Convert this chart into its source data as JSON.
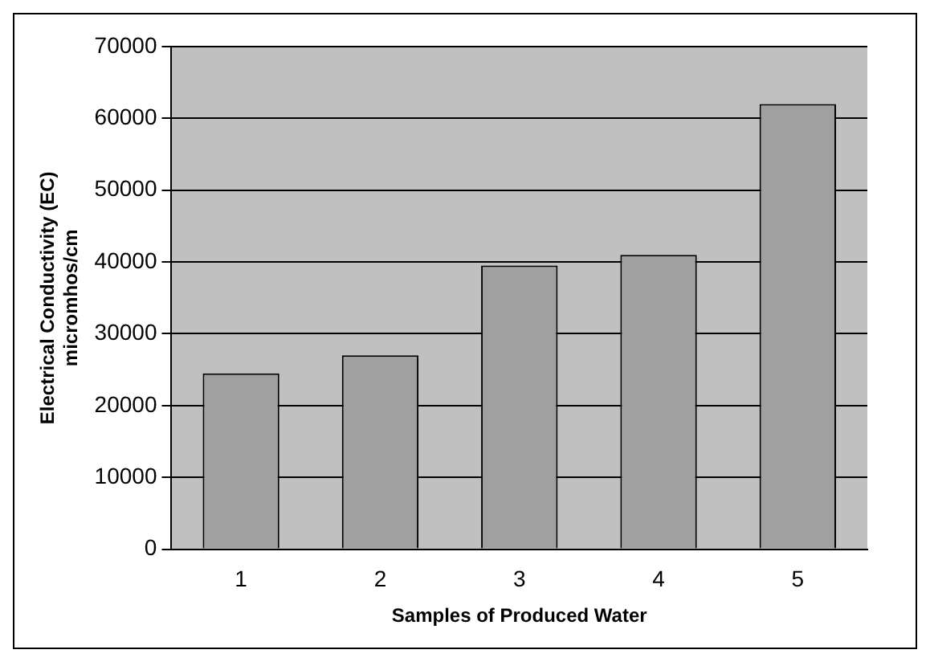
{
  "chart_data": {
    "type": "bar",
    "xlabel": "Samples of Produced Water",
    "ylabel": "Electrical Conductivity (EC)\nmicromhos/cm",
    "categories": [
      "1",
      "2",
      "3",
      "4",
      "5"
    ],
    "values": [
      24500,
      27000,
      39500,
      41000,
      62000
    ],
    "color": "#a0a0a0",
    "ylim": [
      0,
      70000
    ],
    "yticks": [
      0,
      10000,
      20000,
      30000,
      40000,
      50000,
      60000,
      70000
    ],
    "grid": "y",
    "legend": false
  }
}
